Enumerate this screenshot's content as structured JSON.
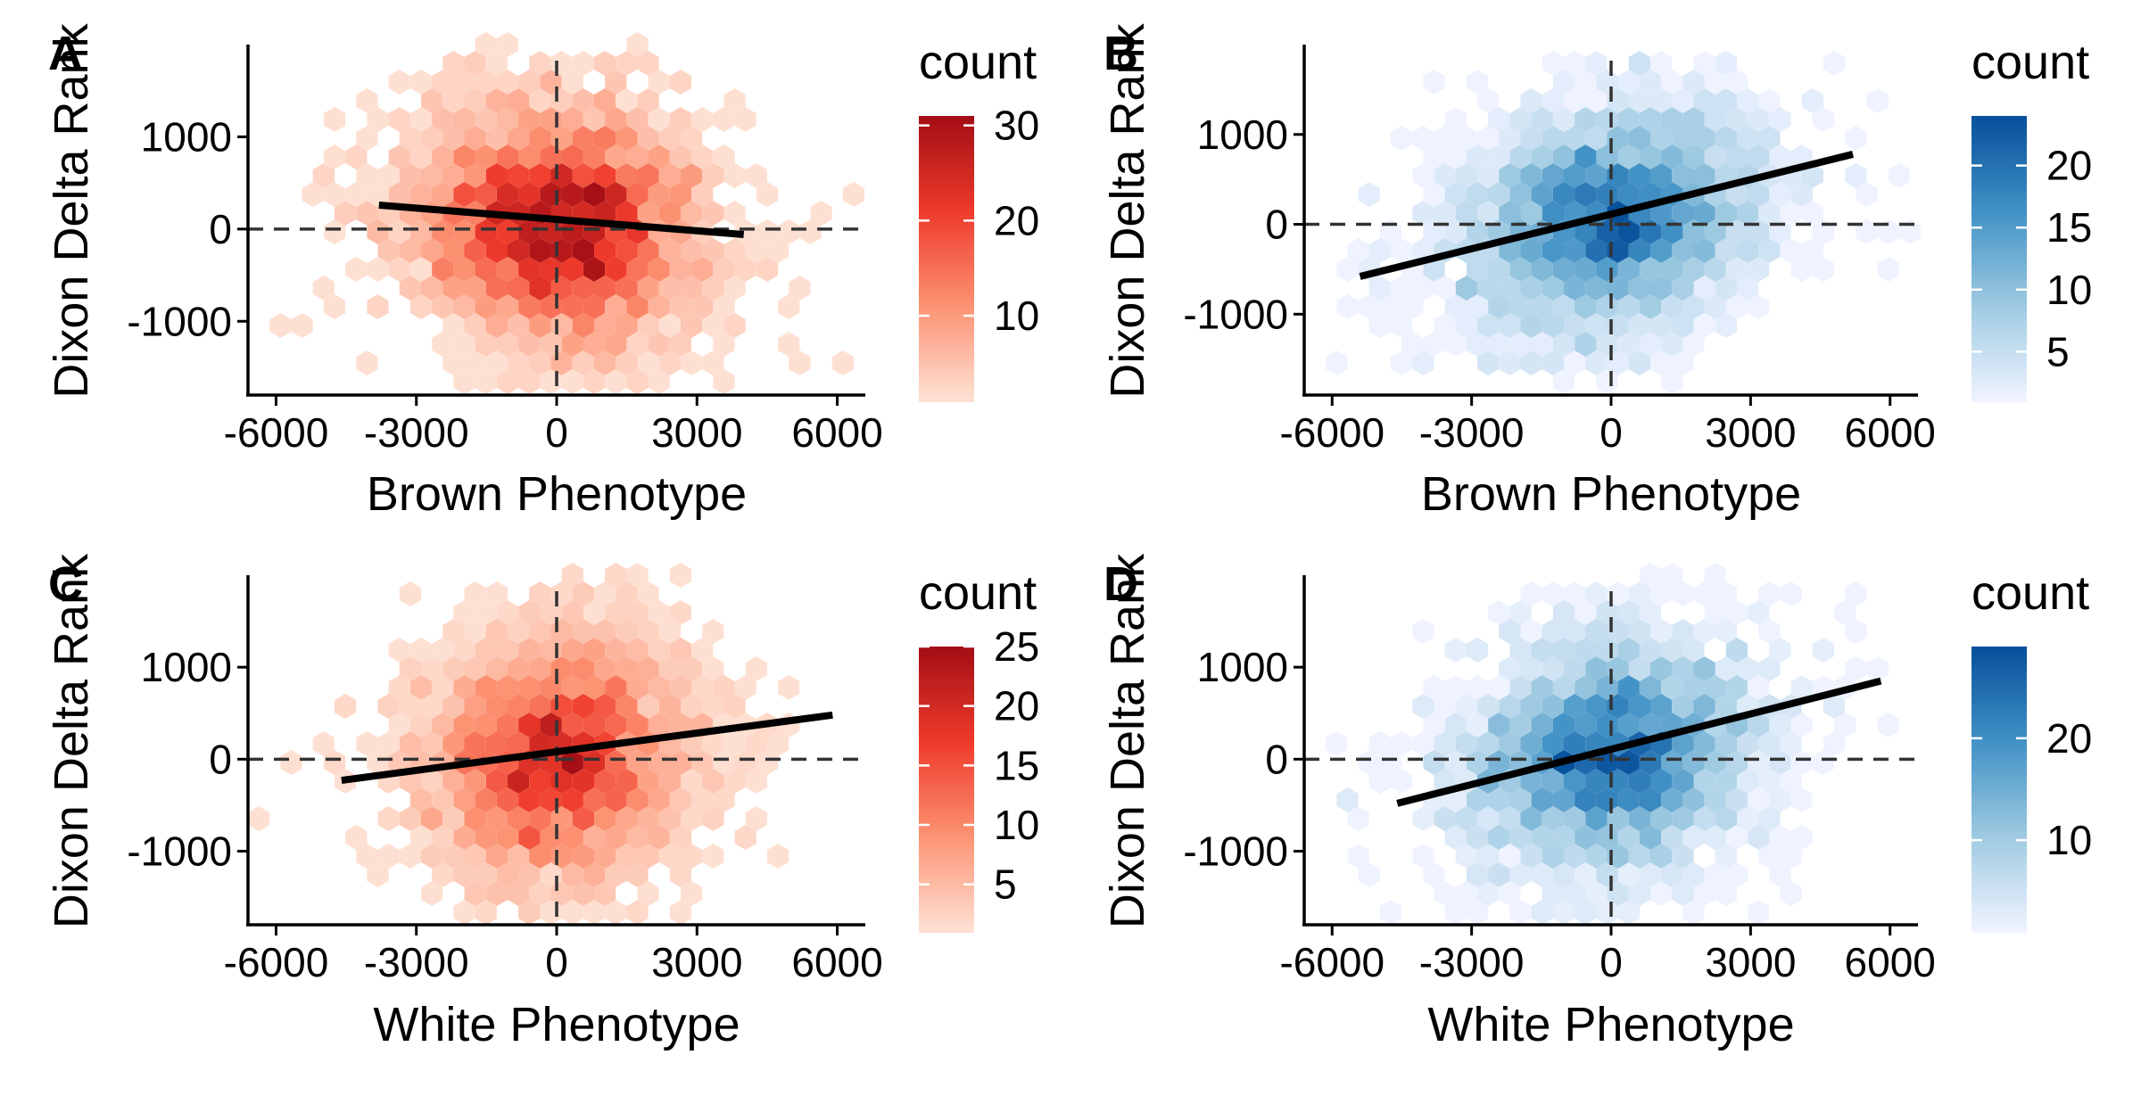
{
  "chart_data": [
    {
      "panel": "A",
      "type": "hexbin",
      "xlabel": "Brown Phenotype",
      "ylabel": "Dixon Delta Rank",
      "xlim": [
        -6600,
        6600
      ],
      "ylim": [
        -1800,
        2000
      ],
      "x_ticks": [
        -6000,
        -3000,
        0,
        3000,
        6000
      ],
      "x_tick_labels": [
        "-6000",
        "-3000",
        "0",
        "3000",
        "6000"
      ],
      "y_ticks": [
        -1000,
        0,
        1000
      ],
      "y_tick_labels": [
        "-1000",
        "0",
        "1000"
      ],
      "reference_lines": {
        "x": 0,
        "y": 0,
        "style": "dashed"
      },
      "fit_line": {
        "x": [
          -3800,
          4000
        ],
        "y": [
          260,
          -60
        ]
      },
      "legend": {
        "title": "count",
        "min": 1,
        "max": 31,
        "breaks": [
          10,
          20,
          30
        ],
        "break_labels": [
          "10",
          "20",
          "30"
        ],
        "colors": [
          "#fee0d2",
          "#fc9272",
          "#ef3b2c",
          "#a50f15"
        ]
      },
      "spread": {
        "sx": 1400,
        "sy": 620,
        "n": 3000
      }
    },
    {
      "panel": "B",
      "type": "hexbin",
      "xlabel": "Brown Phenotype",
      "ylabel": "Dixon Delta Rank",
      "xlim": [
        -6600,
        6600
      ],
      "ylim": [
        -1900,
        2000
      ],
      "x_ticks": [
        -6000,
        -3000,
        0,
        3000,
        6000
      ],
      "x_tick_labels": [
        "-6000",
        "-3000",
        "0",
        "3000",
        "6000"
      ],
      "y_ticks": [
        -1000,
        0,
        1000
      ],
      "y_tick_labels": [
        "-1000",
        "0",
        "1000"
      ],
      "reference_lines": {
        "x": 0,
        "y": 0,
        "style": "dashed"
      },
      "fit_line": {
        "x": [
          -5400,
          5200
        ],
        "y": [
          -580,
          780
        ]
      },
      "legend": {
        "title": "count",
        "min": 1,
        "max": 24,
        "breaks": [
          5,
          10,
          15,
          20
        ],
        "break_labels": [
          "5",
          "10",
          "15",
          "20"
        ],
        "colors": [
          "#eff3ff",
          "#9ecae1",
          "#4292c6",
          "#08519c"
        ]
      },
      "spread": {
        "sx": 1500,
        "sy": 600,
        "n": 2600
      }
    },
    {
      "panel": "C",
      "type": "hexbin",
      "xlabel": "White Phenotype",
      "ylabel": "Dixon Delta Rank",
      "xlim": [
        -6600,
        6600
      ],
      "ylim": [
        -1800,
        2000
      ],
      "x_ticks": [
        -6000,
        -3000,
        0,
        3000,
        6000
      ],
      "x_tick_labels": [
        "-6000",
        "-3000",
        "0",
        "3000",
        "6000"
      ],
      "y_ticks": [
        -1000,
        0,
        1000
      ],
      "y_tick_labels": [
        "-1000",
        "0",
        "1000"
      ],
      "reference_lines": {
        "x": 0,
        "y": 0,
        "style": "dashed"
      },
      "fit_line": {
        "x": [
          -4600,
          5900
        ],
        "y": [
          -230,
          480
        ]
      },
      "legend": {
        "title": "count",
        "min": 1,
        "max": 25,
        "breaks": [
          5,
          10,
          15,
          20,
          25
        ],
        "break_labels": [
          "5",
          "10",
          "15",
          "20",
          "25"
        ],
        "colors": [
          "#fee0d2",
          "#fc9272",
          "#ef3b2c",
          "#a50f15"
        ]
      },
      "spread": {
        "sx": 1300,
        "sy": 620,
        "n": 3000
      }
    },
    {
      "panel": "D",
      "type": "hexbin",
      "xlabel": "White Phenotype",
      "ylabel": "Dixon Delta Rank",
      "xlim": [
        -6600,
        6600
      ],
      "ylim": [
        -1800,
        2000
      ],
      "x_ticks": [
        -6000,
        -3000,
        0,
        3000,
        6000
      ],
      "x_tick_labels": [
        "-6000",
        "-3000",
        "0",
        "3000",
        "6000"
      ],
      "y_ticks": [
        -1000,
        0,
        1000
      ],
      "y_tick_labels": [
        "-1000",
        "0",
        "1000"
      ],
      "reference_lines": {
        "x": 0,
        "y": 0,
        "style": "dashed"
      },
      "fit_line": {
        "x": [
          -4600,
          5800
        ],
        "y": [
          -480,
          850
        ]
      },
      "legend": {
        "title": "count",
        "min": 1,
        "max": 29,
        "breaks": [
          10,
          20
        ],
        "break_labels": [
          "10",
          "20"
        ],
        "colors": [
          "#eff3ff",
          "#9ecae1",
          "#4292c6",
          "#08519c"
        ]
      },
      "spread": {
        "sx": 1450,
        "sy": 600,
        "n": 2900
      }
    }
  ]
}
